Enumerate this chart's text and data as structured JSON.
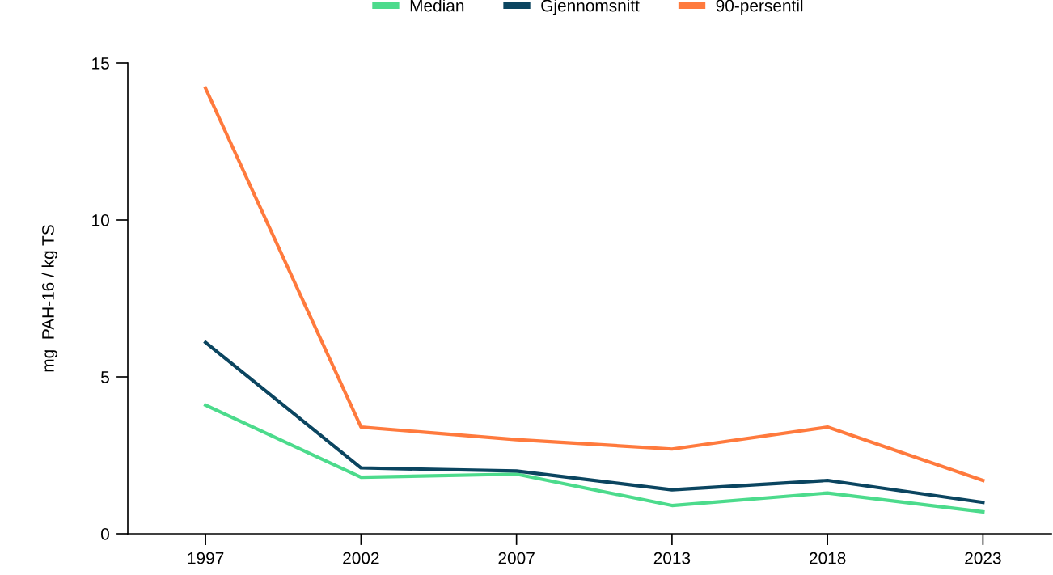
{
  "chart_data": {
    "type": "line",
    "categories": [
      "1997",
      "2002",
      "2007",
      "2013",
      "2018",
      "2023"
    ],
    "series": [
      {
        "name": "Median",
        "color": "#4cdb8c",
        "values": [
          4.1,
          1.8,
          1.9,
          0.9,
          1.3,
          0.7
        ]
      },
      {
        "name": "Gjennomsnitt",
        "color": "#0b4560",
        "values": [
          6.1,
          2.1,
          2.0,
          1.4,
          1.7,
          1.0
        ]
      },
      {
        "name": "90-persentil",
        "color": "#ff7a3d",
        "values": [
          14.2,
          3.4,
          3.0,
          2.7,
          3.4,
          1.7
        ]
      }
    ],
    "ylabel": "mg  PAH-16 / kg TS",
    "ylim": [
      0,
      15
    ],
    "yticks": [
      0,
      5,
      10,
      15
    ],
    "grid": false,
    "legend": "top",
    "marker": "none",
    "line_style": "solid"
  }
}
